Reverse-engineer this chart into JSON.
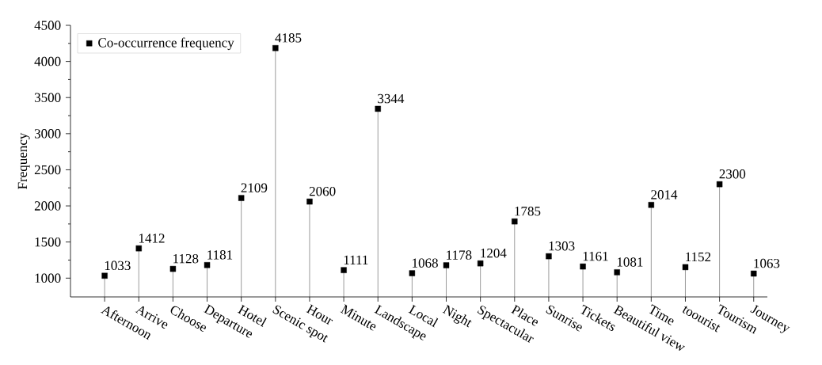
{
  "chart_data": {
    "type": "lollipop",
    "ylabel": "Frequency",
    "categories": [
      "Afternoon",
      "Arrive",
      "Choose",
      "Departure",
      "Hotel",
      "Scenic spot",
      "Hour",
      "Minute",
      "Landscape",
      "Local",
      "Night",
      "Spectacular",
      "Place",
      "Sunrise",
      "Tickets",
      "Beautiful view",
      "Time",
      "toourist",
      "Tourism",
      "Journey"
    ],
    "series": [
      {
        "name": "Co-occurrence frequency",
        "color": "#000000",
        "values": [
          1033,
          1412,
          1128,
          1181,
          2109,
          4185,
          2060,
          1111,
          3344,
          1068,
          1178,
          1204,
          1785,
          1303,
          1161,
          1081,
          2014,
          1152,
          2300,
          1063
        ]
      }
    ],
    "ylim": [
      740,
      4500
    ],
    "yticks": [
      1000,
      1500,
      2000,
      2500,
      3000,
      3500,
      4000,
      4500
    ],
    "data_labels": true,
    "legend": "top left",
    "marker": "square"
  }
}
